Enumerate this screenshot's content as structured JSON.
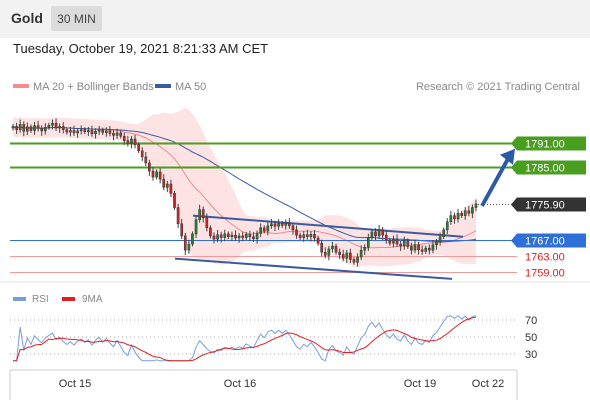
{
  "header": {
    "symbol": "Gold",
    "timeframe": "30 MIN"
  },
  "datetime": "Tuesday, October 19, 2021 8:21:33 AM CET",
  "credit": "Research © 2021 Trading Central",
  "colors": {
    "bollinger": "#f48a8a",
    "ma50": "#3a5ba0",
    "green": "#4a9e1f",
    "blue": "#2e6fd8",
    "rsi": "#7a9ce0",
    "rsi_ma": "#e02020"
  },
  "chart_data": [
    {
      "type": "candlestick",
      "legend": [
        {
          "name": "MA 20 + Bollinger Bands"
        },
        {
          "name": "MA 50"
        }
      ],
      "x_ticks": [
        "Oct 15",
        "Oct 16",
        "Oct 19",
        "Oct 22"
      ],
      "ylim": [
        1756,
        1800
      ],
      "levels": [
        {
          "value": 1791.0,
          "label": "1791.00",
          "style": "green-box"
        },
        {
          "value": 1785.0,
          "label": "1785.00",
          "style": "green-box"
        },
        {
          "value": 1775.9,
          "label": "1775.90",
          "style": "current"
        },
        {
          "value": 1767.0,
          "label": "1767.00",
          "style": "blue-box"
        },
        {
          "value": 1763.0,
          "label": "1763.00",
          "style": "red-text"
        },
        {
          "value": 1759.0,
          "label": "1759.00",
          "style": "red-text"
        }
      ],
      "candles": [
        1795.0,
        1794.2,
        1795.5,
        1793.8,
        1794.9,
        1794.0,
        1795.2,
        1794.5,
        1793.9,
        1794.8,
        1795.3,
        1795.8,
        1794.6,
        1795.0,
        1794.2,
        1793.6,
        1794.0,
        1793.4,
        1793.9,
        1794.2,
        1793.7,
        1794.0,
        1793.2,
        1793.8,
        1794.1,
        1793.5,
        1793.9,
        1793.3,
        1792.8,
        1793.4,
        1792.6,
        1791.5,
        1790.8,
        1791.9,
        1790.5,
        1789.0,
        1787.5,
        1786.0,
        1784.0,
        1782.5,
        1783.8,
        1782.0,
        1780.0,
        1780.8,
        1778.5,
        1775.0,
        1771.0,
        1768.0,
        1764.5,
        1766.0,
        1768.5,
        1772.0,
        1774.5,
        1772.5,
        1770.0,
        1768.0,
        1767.2,
        1768.3,
        1767.6,
        1768.5,
        1767.8,
        1768.2,
        1767.5,
        1768.0,
        1767.6,
        1768.4,
        1767.8,
        1767.3,
        1768.6,
        1770.0,
        1769.2,
        1770.5,
        1771.0,
        1770.4,
        1771.1,
        1770.6,
        1771.2,
        1770.5,
        1769.5,
        1768.2,
        1767.6,
        1768.3,
        1767.8,
        1768.4,
        1767.5,
        1766.2,
        1764.0,
        1763.2,
        1764.8,
        1765.5,
        1764.0,
        1763.4,
        1762.5,
        1763.8,
        1762.2,
        1761.5,
        1762.8,
        1764.5,
        1765.2,
        1767.5,
        1769.0,
        1768.0,
        1769.5,
        1768.2,
        1767.0,
        1766.2,
        1767.2,
        1766.0,
        1765.5,
        1766.8,
        1765.4,
        1764.5,
        1765.8,
        1764.6,
        1764.2,
        1765.0,
        1764.5,
        1765.8,
        1766.5,
        1767.8,
        1769.5,
        1771.5,
        1773.0,
        1772.2,
        1773.6,
        1773.0,
        1774.2,
        1773.6,
        1775.0,
        1775.9
      ],
      "projection_end": 1788.5
    },
    {
      "type": "line",
      "legend": [
        {
          "name": "RSI"
        },
        {
          "name": "9MA"
        }
      ],
      "y_ticks": [
        "70",
        "50",
        "30"
      ],
      "ylim": [
        10,
        80
      ]
    }
  ]
}
